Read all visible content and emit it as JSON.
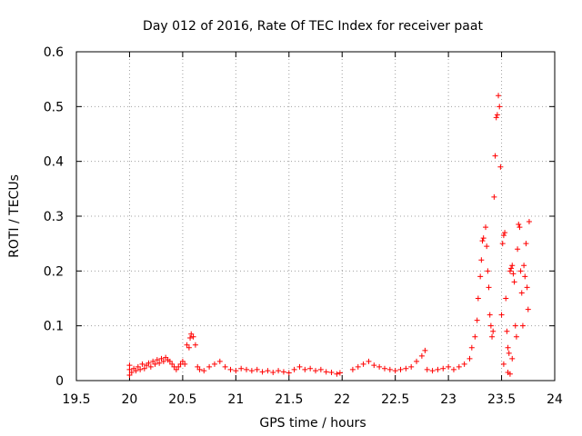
{
  "chart_data": {
    "type": "scatter",
    "title": "Day 012 of 2016, Rate Of TEC Index for receiver paat",
    "xlabel": "GPS time / hours",
    "ylabel": "ROTI / TECUs",
    "xlim": [
      19.5,
      24
    ],
    "ylim": [
      0,
      0.6
    ],
    "x_ticks": [
      19.5,
      20,
      20.5,
      21,
      21.5,
      22,
      22.5,
      23,
      23.5,
      24
    ],
    "x_tick_labels": [
      "19.5",
      "20",
      "20.5",
      "21",
      "21.5",
      "22",
      "22.5",
      "23",
      "23.5",
      "24"
    ],
    "y_ticks": [
      0,
      0.1,
      0.2,
      0.3,
      0.4,
      0.5,
      0.6
    ],
    "y_tick_labels": [
      "0",
      "0.1",
      "0.2",
      "0.3",
      "0.4",
      "0.5",
      "0.6"
    ],
    "grid": true,
    "marker": "plus",
    "series_color": "#ff0000",
    "series": [
      {
        "name": "ROTI",
        "points": [
          [
            20.0,
            0.028
          ],
          [
            20.0,
            0.01
          ],
          [
            20.0,
            0.02
          ],
          [
            20.02,
            0.015
          ],
          [
            20.04,
            0.022
          ],
          [
            20.06,
            0.018
          ],
          [
            20.08,
            0.025
          ],
          [
            20.1,
            0.02
          ],
          [
            20.12,
            0.03
          ],
          [
            20.14,
            0.022
          ],
          [
            20.16,
            0.028
          ],
          [
            20.18,
            0.032
          ],
          [
            20.2,
            0.025
          ],
          [
            20.22,
            0.035
          ],
          [
            20.24,
            0.03
          ],
          [
            20.26,
            0.038
          ],
          [
            20.28,
            0.032
          ],
          [
            20.3,
            0.04
          ],
          [
            20.32,
            0.035
          ],
          [
            20.34,
            0.042
          ],
          [
            20.36,
            0.038
          ],
          [
            20.38,
            0.035
          ],
          [
            20.4,
            0.03
          ],
          [
            20.42,
            0.025
          ],
          [
            20.44,
            0.02
          ],
          [
            20.46,
            0.025
          ],
          [
            20.48,
            0.03
          ],
          [
            20.5,
            0.035
          ],
          [
            20.52,
            0.03
          ],
          [
            20.54,
            0.065
          ],
          [
            20.56,
            0.06
          ],
          [
            20.57,
            0.078
          ],
          [
            20.58,
            0.085
          ],
          [
            20.6,
            0.08
          ],
          [
            20.62,
            0.065
          ],
          [
            20.64,
            0.025
          ],
          [
            20.66,
            0.02
          ],
          [
            20.7,
            0.018
          ],
          [
            20.75,
            0.025
          ],
          [
            20.8,
            0.03
          ],
          [
            20.85,
            0.035
          ],
          [
            20.9,
            0.025
          ],
          [
            20.95,
            0.02
          ],
          [
            21.0,
            0.018
          ],
          [
            21.05,
            0.022
          ],
          [
            21.1,
            0.02
          ],
          [
            21.15,
            0.018
          ],
          [
            21.2,
            0.02
          ],
          [
            21.25,
            0.016
          ],
          [
            21.3,
            0.018
          ],
          [
            21.35,
            0.015
          ],
          [
            21.4,
            0.018
          ],
          [
            21.45,
            0.016
          ],
          [
            21.5,
            0.014
          ],
          [
            21.55,
            0.02
          ],
          [
            21.6,
            0.025
          ],
          [
            21.65,
            0.02
          ],
          [
            21.7,
            0.022
          ],
          [
            21.75,
            0.018
          ],
          [
            21.8,
            0.02
          ],
          [
            21.85,
            0.016
          ],
          [
            21.9,
            0.015
          ],
          [
            21.95,
            0.012
          ],
          [
            21.98,
            0.014
          ],
          [
            22.1,
            0.02
          ],
          [
            22.15,
            0.025
          ],
          [
            22.2,
            0.03
          ],
          [
            22.25,
            0.035
          ],
          [
            22.3,
            0.028
          ],
          [
            22.35,
            0.025
          ],
          [
            22.4,
            0.022
          ],
          [
            22.45,
            0.02
          ],
          [
            22.5,
            0.018
          ],
          [
            22.55,
            0.02
          ],
          [
            22.6,
            0.022
          ],
          [
            22.65,
            0.025
          ],
          [
            22.7,
            0.035
          ],
          [
            22.75,
            0.045
          ],
          [
            22.78,
            0.055
          ],
          [
            22.8,
            0.02
          ],
          [
            22.85,
            0.018
          ],
          [
            22.9,
            0.02
          ],
          [
            22.95,
            0.022
          ],
          [
            23.0,
            0.025
          ],
          [
            23.05,
            0.02
          ],
          [
            23.1,
            0.025
          ],
          [
            23.15,
            0.03
          ],
          [
            23.2,
            0.04
          ],
          [
            23.22,
            0.06
          ],
          [
            23.25,
            0.08
          ],
          [
            23.27,
            0.11
          ],
          [
            23.28,
            0.15
          ],
          [
            23.3,
            0.19
          ],
          [
            23.31,
            0.22
          ],
          [
            23.32,
            0.255
          ],
          [
            23.33,
            0.26
          ],
          [
            23.35,
            0.28
          ],
          [
            23.36,
            0.245
          ],
          [
            23.37,
            0.2
          ],
          [
            23.38,
            0.17
          ],
          [
            23.39,
            0.12
          ],
          [
            23.4,
            0.1
          ],
          [
            23.41,
            0.08
          ],
          [
            23.42,
            0.09
          ],
          [
            23.43,
            0.335
          ],
          [
            23.44,
            0.41
          ],
          [
            23.45,
            0.48
          ],
          [
            23.46,
            0.485
          ],
          [
            23.47,
            0.52
          ],
          [
            23.48,
            0.5
          ],
          [
            23.49,
            0.39
          ],
          [
            23.5,
            0.12
          ],
          [
            23.51,
            0.25
          ],
          [
            23.52,
            0.265
          ],
          [
            23.53,
            0.27
          ],
          [
            23.54,
            0.15
          ],
          [
            23.55,
            0.09
          ],
          [
            23.56,
            0.06
          ],
          [
            23.57,
            0.05
          ],
          [
            23.58,
            0.2
          ],
          [
            23.59,
            0.205
          ],
          [
            23.6,
            0.21
          ],
          [
            23.61,
            0.195
          ],
          [
            23.62,
            0.18
          ],
          [
            23.63,
            0.1
          ],
          [
            23.64,
            0.08
          ],
          [
            23.65,
            0.24
          ],
          [
            23.66,
            0.285
          ],
          [
            23.67,
            0.28
          ],
          [
            23.68,
            0.2
          ],
          [
            23.69,
            0.16
          ],
          [
            23.7,
            0.1
          ],
          [
            23.71,
            0.21
          ],
          [
            23.72,
            0.19
          ],
          [
            23.73,
            0.25
          ],
          [
            23.74,
            0.17
          ],
          [
            23.75,
            0.13
          ],
          [
            23.76,
            0.29
          ],
          [
            23.56,
            0.015
          ],
          [
            23.58,
            0.012
          ],
          [
            23.6,
            0.04
          ],
          [
            23.52,
            0.03
          ]
        ]
      }
    ]
  }
}
